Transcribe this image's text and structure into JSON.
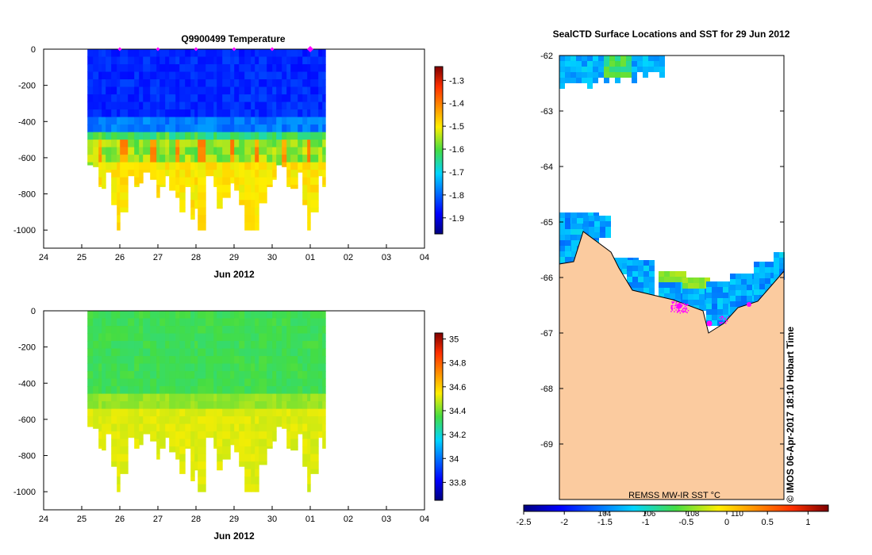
{
  "charts": {
    "temperature": {
      "type": "heatmap",
      "title": "Q9900499  Temperature",
      "xlabel": "Jun 2012",
      "x_tick_labels": [
        "24",
        "25",
        "26",
        "27",
        "28",
        "29",
        "30",
        "01",
        "02",
        "03",
        "04"
      ],
      "y_tick_labels": [
        "0",
        "-200",
        "-400",
        "-600",
        "-800",
        "-1000"
      ],
      "y_values": [
        0,
        -200,
        -400,
        -600,
        -800,
        -1000
      ],
      "ylim": [
        -1100,
        0
      ],
      "colorbar_labels": [
        "-1.3",
        "-1.4",
        "-1.5",
        "-1.6",
        "-1.7",
        "-1.8",
        "-1.9"
      ],
      "colorbar_values": [
        -1.3,
        -1.4,
        -1.5,
        -1.6,
        -1.7,
        -1.8,
        -1.9
      ],
      "colorbar_range": [
        -1.97,
        -1.24
      ],
      "profile_markers_day_offsets": [
        2,
        3,
        4,
        5,
        6,
        7
      ]
    },
    "salinity": {
      "type": "heatmap",
      "xlabel": "Jun 2012",
      "x_tick_labels": [
        "24",
        "25",
        "26",
        "27",
        "28",
        "29",
        "30",
        "01",
        "02",
        "03",
        "04"
      ],
      "y_tick_labels": [
        "0",
        "-200",
        "-400",
        "-600",
        "-800",
        "-1000"
      ],
      "y_values": [
        0,
        -200,
        -400,
        -600,
        -800,
        -1000
      ],
      "ylim": [
        -1100,
        0
      ],
      "colorbar_labels": [
        "35",
        "34.8",
        "34.6",
        "34.4",
        "34.2",
        "34",
        "33.8"
      ],
      "colorbar_values": [
        35,
        34.8,
        34.6,
        34.4,
        34.2,
        34,
        33.8
      ],
      "colorbar_range": [
        33.65,
        35.05
      ]
    },
    "map": {
      "type": "map",
      "title": "SealCTD Surface Locations and SST for 29 Jun 2012",
      "lat_tick_labels": [
        "-62",
        "-63",
        "-64",
        "-65",
        "-66",
        "-67",
        "-68",
        "-69"
      ],
      "lat_values": [
        -62,
        -63,
        -64,
        -65,
        -66,
        -67,
        -68,
        -69
      ],
      "lat_range": [
        -62,
        -70
      ],
      "inner_labels": [
        "104",
        "106",
        "108",
        "110"
      ],
      "source_label": "REMSS MW-IR SST °C",
      "colorbar_labels": [
        "-2.5",
        "-2",
        "-1.5",
        "-1",
        "-0.5",
        "0",
        "0.5",
        "1"
      ],
      "colorbar_values": [
        -2.5,
        -2,
        -1.5,
        -1,
        -0.5,
        0,
        0.5,
        1
      ],
      "colorbar_range": [
        -2.5,
        1.25
      ],
      "credit": "© IMOS 06-Apr-2017 18:10 Hobart Time"
    }
  },
  "colors": {
    "land": "#fbcb9f",
    "coast": "#000000",
    "marker": "#ff00ff",
    "ice_white": "#ffffff"
  },
  "icons": {
    "marker": "magenta-diamond-icon"
  }
}
